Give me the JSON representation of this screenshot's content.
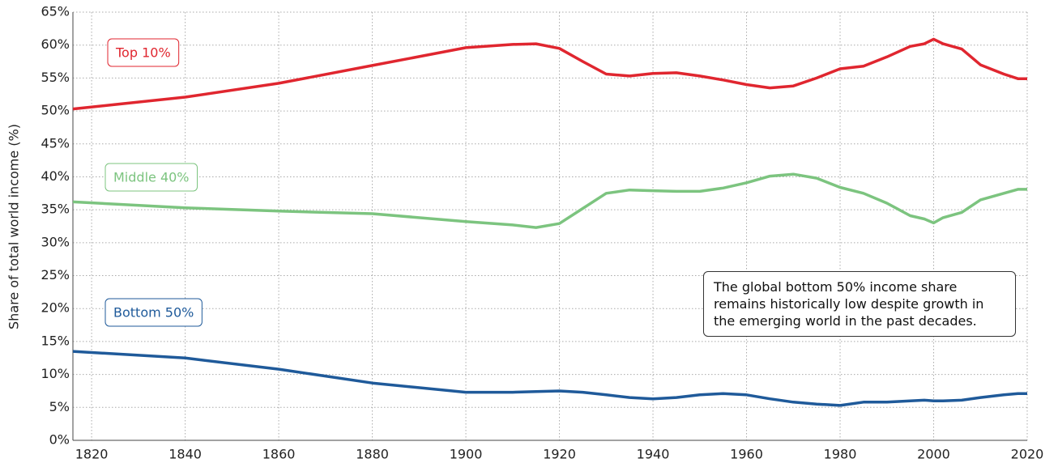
{
  "chart_data": {
    "type": "line",
    "y_label": "Share of total world income (%)",
    "annotation": "The global bottom 50% income share remains historically low despite growth in the emerging world in the past decades.",
    "x": [
      1816,
      1840,
      1860,
      1880,
      1900,
      1910,
      1915,
      1920,
      1925,
      1930,
      1935,
      1940,
      1945,
      1950,
      1955,
      1960,
      1965,
      1970,
      1975,
      1980,
      1985,
      1990,
      1995,
      1998,
      2000,
      2002,
      2006,
      2010,
      2015,
      2018,
      2020
    ],
    "series": [
      {
        "name": "Top 10%",
        "color": "#e0262f",
        "values": [
          50.3,
          52.1,
          54.2,
          56.9,
          59.6,
          60.1,
          60.2,
          59.5,
          57.5,
          55.6,
          55.3,
          55.7,
          55.8,
          55.3,
          54.7,
          54.0,
          53.5,
          53.8,
          55.0,
          56.4,
          56.8,
          58.2,
          59.8,
          60.2,
          60.9,
          60.2,
          59.4,
          57.0,
          55.6,
          54.9,
          54.9
        ]
      },
      {
        "name": "Middle 40%",
        "color": "#7cc47f",
        "values": [
          36.2,
          35.3,
          34.8,
          34.4,
          33.2,
          32.7,
          32.3,
          32.9,
          35.2,
          37.5,
          38.0,
          37.9,
          37.8,
          37.8,
          38.3,
          39.1,
          40.1,
          40.4,
          39.8,
          38.4,
          37.5,
          36.0,
          34.1,
          33.6,
          33.0,
          33.8,
          34.6,
          36.5,
          37.5,
          38.1,
          38.1
        ]
      },
      {
        "name": "Bottom 50%",
        "color": "#1f5a9a",
        "values": [
          13.5,
          12.5,
          10.8,
          8.7,
          7.3,
          7.3,
          7.4,
          7.5,
          7.3,
          6.9,
          6.5,
          6.3,
          6.5,
          6.9,
          7.1,
          6.9,
          6.3,
          5.8,
          5.5,
          5.3,
          5.8,
          5.8,
          6.0,
          6.1,
          6.0,
          6.0,
          6.1,
          6.5,
          6.9,
          7.1,
          7.1
        ]
      }
    ],
    "xlim": [
      1816,
      2020
    ],
    "xticks": [
      1820,
      1840,
      1860,
      1880,
      1900,
      1920,
      1940,
      1960,
      1980,
      2000,
      2020
    ],
    "ylim": [
      0,
      65
    ],
    "yticks": [
      {
        "value": 0,
        "label": "0%"
      },
      {
        "value": 5,
        "label": "5%"
      },
      {
        "value": 10,
        "label": "10%"
      },
      {
        "value": 15,
        "label": "15%"
      },
      {
        "value": 20,
        "label": "20%"
      },
      {
        "value": 25,
        "label": "25%"
      },
      {
        "value": 30,
        "label": "30%"
      },
      {
        "value": 35,
        "label": "35%"
      },
      {
        "value": 40,
        "label": "40%"
      },
      {
        "value": 45,
        "label": "45%"
      },
      {
        "value": 50,
        "label": "50%"
      },
      {
        "value": 55,
        "label": "55%"
      },
      {
        "value": 60,
        "label": "60%"
      },
      {
        "value": 65,
        "label": "65%"
      }
    ],
    "grid": true
  }
}
